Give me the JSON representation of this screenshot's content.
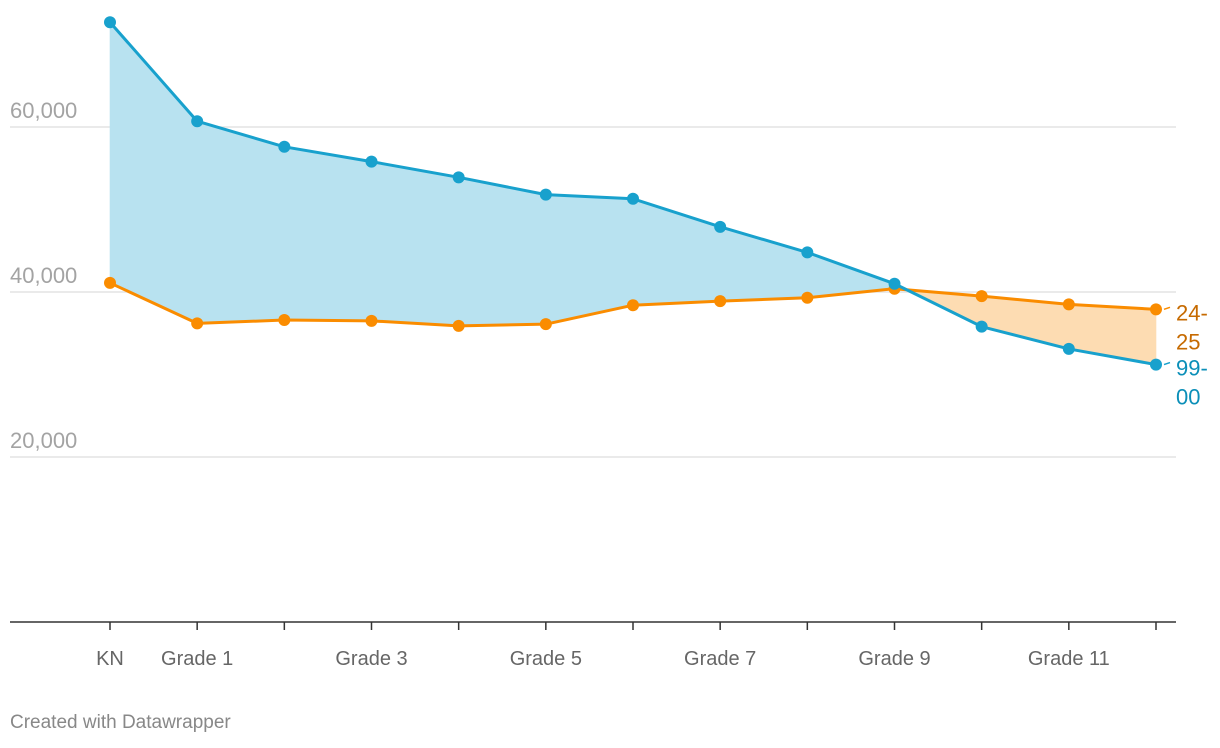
{
  "chart_data": {
    "type": "line",
    "title": "",
    "xlabel": "",
    "ylabel": "",
    "x_tick_labels": [
      "KN",
      "Grade 1",
      "",
      "Grade 3",
      "",
      "Grade 5",
      "",
      "Grade 7",
      "",
      "Grade 9",
      "",
      "Grade 11",
      ""
    ],
    "y_ticks": [
      20000,
      40000,
      60000
    ],
    "y_tick_labels": [
      "20,000",
      "40,000",
      "60,000"
    ],
    "ylim": [
      0,
      75000
    ],
    "grid": "horizontal",
    "legend": "direct labels at right end of lines",
    "series": [
      {
        "name": "99-00",
        "label_lines": [
          "99-",
          "00"
        ],
        "color": "#18a1cd",
        "label_color": "#0b8fb8",
        "values": [
          72700,
          60700,
          57600,
          55800,
          53900,
          51800,
          51300,
          47900,
          44800,
          41000,
          35800,
          33100,
          31200
        ]
      },
      {
        "name": "24-25",
        "label_lines": [
          "24-",
          "25"
        ],
        "color": "#fa8c00",
        "label_color": "#c66a00",
        "values": [
          41100,
          36200,
          36600,
          36500,
          35900,
          36100,
          38400,
          38900,
          39300,
          40400,
          39500,
          38500,
          37900
        ]
      }
    ],
    "fill_colors": {
      "above": "#b8e2f0",
      "below": "#fddcb2"
    }
  },
  "footer": {
    "credit": "Created with Datawrapper"
  }
}
